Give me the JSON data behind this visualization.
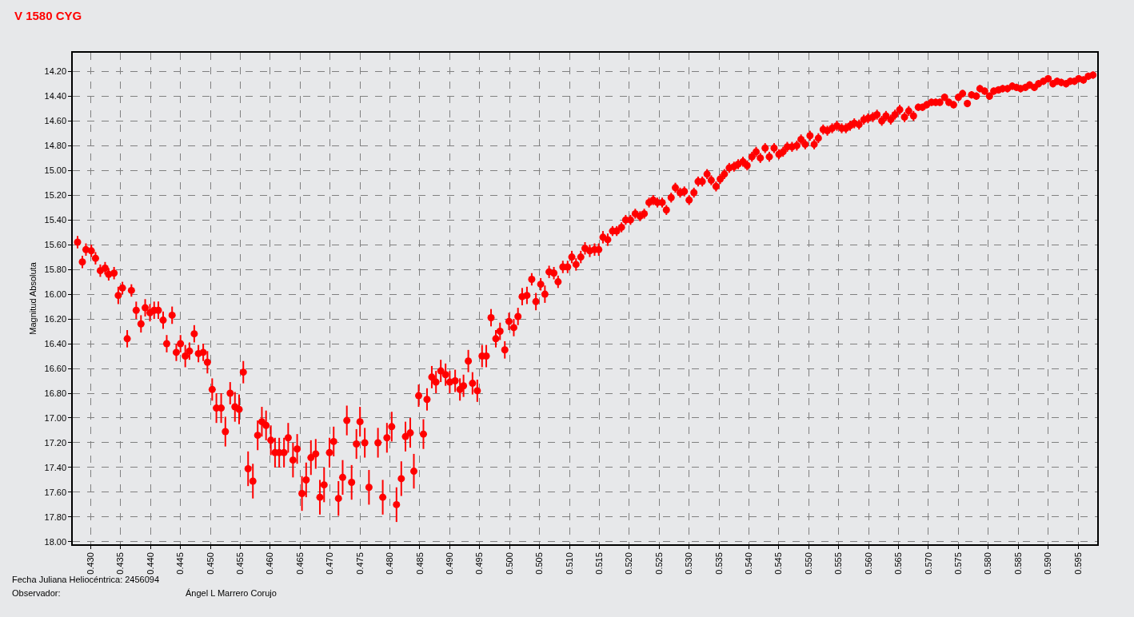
{
  "chart_data": {
    "type": "scatter",
    "title": "V 1580 CYG",
    "ylabel": "Magnitud Absoluta",
    "annotations": [
      "Fecha Juliana Heliocéntrica: 2456094",
      "Observador:",
      "Ángel L Marrero Corujo"
    ],
    "x": [
      0.4278,
      0.4286,
      0.4292,
      0.4301,
      0.4308,
      0.4316,
      0.4324,
      0.433,
      0.4339,
      0.4346,
      0.4353,
      0.4361,
      0.4368,
      0.4376,
      0.4384,
      0.4391,
      0.4399,
      0.4406,
      0.4413,
      0.4421,
      0.4427,
      0.4436,
      0.4443,
      0.445,
      0.4458,
      0.4465,
      0.4473,
      0.448,
      0.4488,
      0.4495,
      0.4503,
      0.451,
      0.4518,
      0.4525,
      0.4533,
      0.4541,
      0.4548,
      0.4555,
      0.4563,
      0.4571,
      0.4579,
      0.4586,
      0.4593,
      0.4601,
      0.4608,
      0.4615,
      0.4623,
      0.463,
      0.4638,
      0.4645,
      0.4653,
      0.466,
      0.4668,
      0.4676,
      0.4683,
      0.469,
      0.4699,
      0.4706,
      0.4714,
      0.4721,
      0.4728,
      0.4736,
      0.4744,
      0.475,
      0.4758,
      0.4765,
      0.478,
      0.4788,
      0.4795,
      0.4803,
      0.4811,
      0.4819,
      0.4826,
      0.4834,
      0.484,
      0.4848,
      0.4856,
      0.4862,
      0.487,
      0.4877,
      0.4885,
      0.4893,
      0.49,
      0.4909,
      0.4917,
      0.4923,
      0.4931,
      0.4938,
      0.4946,
      0.4954,
      0.4961,
      0.4969,
      0.4977,
      0.4984,
      0.4992,
      0.4999,
      0.5007,
      0.5014,
      0.5021,
      0.5029,
      0.5037,
      0.5044,
      0.5052,
      0.5059,
      0.5066,
      0.5074,
      0.5081,
      0.5089,
      0.5097,
      0.5104,
      0.5111,
      0.5119,
      0.5126,
      0.5134,
      0.5142,
      0.5149,
      0.5156,
      0.5164,
      0.5172,
      0.5179,
      0.5187,
      0.5194,
      0.5202,
      0.521,
      0.5218,
      0.5225,
      0.5233,
      0.524,
      0.5247,
      0.5255,
      0.5262,
      0.527,
      0.5277,
      0.5285,
      0.5292,
      0.53,
      0.5308,
      0.5315,
      0.5322,
      0.533,
      0.5337,
      0.5345,
      0.5352,
      0.5359,
      0.5367,
      0.5375,
      0.5382,
      0.539,
      0.5397,
      0.5405,
      0.5412,
      0.5419,
      0.5427,
      0.5434,
      0.5442,
      0.545,
      0.5457,
      0.5464,
      0.5472,
      0.548,
      0.5487,
      0.5494,
      0.5502,
      0.5509,
      0.5516,
      0.5524,
      0.5531,
      0.5539,
      0.5547,
      0.5555,
      0.5562,
      0.5569,
      0.5576,
      0.5584,
      0.5592,
      0.5599,
      0.5607,
      0.5614,
      0.5622,
      0.5629,
      0.5637,
      0.5644,
      0.5652,
      0.566,
      0.5667,
      0.5675,
      0.5683,
      0.569,
      0.5697,
      0.5705,
      0.5712,
      0.5719,
      0.5727,
      0.5734,
      0.5742,
      0.575,
      0.5757,
      0.5765,
      0.5772,
      0.578,
      0.5786,
      0.5794,
      0.5802,
      0.5809,
      0.5817,
      0.5824,
      0.5832,
      0.584,
      0.5847,
      0.5854,
      0.5862,
      0.5869,
      0.5877,
      0.5884,
      0.5892,
      0.59,
      0.5908,
      0.5915,
      0.5922,
      0.593,
      0.5937,
      0.5944,
      0.5951,
      0.5959,
      0.5967,
      0.5975
    ],
    "series": [
      {
        "color": "#ff0000",
        "values": [
          15.58,
          15.74,
          15.64,
          15.65,
          15.71,
          15.81,
          15.79,
          15.84,
          15.83,
          16.01,
          15.95,
          16.36,
          15.97,
          16.13,
          16.24,
          16.11,
          16.15,
          16.13,
          16.13,
          16.21,
          16.4,
          16.17,
          16.47,
          16.4,
          16.5,
          16.46,
          16.32,
          16.48,
          16.47,
          16.55,
          16.77,
          16.92,
          16.92,
          17.11,
          16.8,
          16.91,
          16.93,
          16.63,
          17.41,
          17.51,
          17.14,
          17.03,
          17.06,
          17.18,
          17.28,
          17.28,
          17.28,
          17.16,
          17.34,
          17.25,
          17.61,
          17.5,
          17.32,
          17.29,
          17.64,
          17.54,
          17.28,
          17.19,
          17.65,
          17.48,
          17.02,
          17.52,
          17.21,
          17.03,
          17.2,
          17.56,
          17.2,
          17.64,
          17.16,
          17.07,
          17.7,
          17.49,
          17.15,
          17.12,
          17.43,
          16.82,
          17.13,
          16.85,
          16.67,
          16.71,
          16.62,
          16.65,
          16.71,
          16.7,
          16.77,
          16.74,
          16.54,
          16.72,
          16.78,
          16.5,
          16.5,
          16.19,
          16.36,
          16.3,
          16.45,
          16.22,
          16.27,
          16.18,
          16.02,
          16.01,
          15.88,
          16.06,
          15.92,
          16.0,
          15.82,
          15.83,
          15.9,
          15.78,
          15.78,
          15.7,
          15.76,
          15.7,
          15.63,
          15.65,
          15.64,
          15.64,
          15.54,
          15.56,
          15.49,
          15.49,
          15.46,
          15.4,
          15.4,
          15.35,
          15.37,
          15.35,
          15.26,
          15.24,
          15.26,
          15.26,
          15.32,
          15.22,
          15.14,
          15.18,
          15.17,
          15.24,
          15.18,
          15.09,
          15.09,
          15.03,
          15.08,
          15.13,
          15.07,
          15.03,
          14.98,
          14.97,
          14.95,
          14.93,
          14.96,
          14.89,
          14.85,
          14.9,
          14.82,
          14.89,
          14.82,
          14.87,
          14.85,
          14.81,
          14.81,
          14.8,
          14.75,
          14.79,
          14.72,
          14.79,
          14.74,
          14.67,
          14.68,
          14.66,
          14.64,
          14.66,
          14.66,
          14.64,
          14.62,
          14.63,
          14.59,
          14.58,
          14.57,
          14.55,
          14.6,
          14.56,
          14.59,
          14.55,
          14.51,
          14.57,
          14.52,
          14.56,
          14.49,
          14.49,
          14.47,
          14.45,
          14.45,
          14.45,
          14.41,
          14.45,
          14.47,
          14.41,
          14.38,
          14.46,
          14.39,
          14.4,
          14.34,
          14.36,
          14.4,
          14.36,
          14.35,
          14.34,
          14.34,
          14.32,
          14.33,
          14.34,
          14.33,
          14.31,
          14.33,
          14.3,
          14.28,
          14.26,
          14.3,
          14.28,
          14.29,
          14.3,
          14.28,
          14.28,
          14.26,
          14.27,
          14.24,
          14.23
        ],
        "errors": [
          0.05,
          0.05,
          0.05,
          0.05,
          0.05,
          0.05,
          0.05,
          0.05,
          0.05,
          0.07,
          0.05,
          0.07,
          0.05,
          0.07,
          0.07,
          0.07,
          0.07,
          0.07,
          0.07,
          0.07,
          0.07,
          0.07,
          0.07,
          0.07,
          0.09,
          0.07,
          0.07,
          0.07,
          0.07,
          0.09,
          0.09,
          0.12,
          0.12,
          0.12,
          0.09,
          0.12,
          0.12,
          0.09,
          0.14,
          0.14,
          0.12,
          0.12,
          0.12,
          0.12,
          0.12,
          0.12,
          0.12,
          0.12,
          0.14,
          0.12,
          0.14,
          0.14,
          0.14,
          0.12,
          0.14,
          0.14,
          0.12,
          0.12,
          0.14,
          0.14,
          0.12,
          0.14,
          0.12,
          0.12,
          0.12,
          0.14,
          0.12,
          0.14,
          0.12,
          0.12,
          0.14,
          0.14,
          0.12,
          0.12,
          0.14,
          0.09,
          0.12,
          0.09,
          0.09,
          0.09,
          0.09,
          0.09,
          0.09,
          0.09,
          0.09,
          0.09,
          0.09,
          0.09,
          0.09,
          0.09,
          0.09,
          0.07,
          0.07,
          0.07,
          0.07,
          0.07,
          0.07,
          0.07,
          0.07,
          0.07,
          0.05,
          0.07,
          0.05,
          0.07,
          0.05,
          0.05,
          0.05,
          0.05,
          0.05,
          0.05,
          0.05,
          0.05,
          0.05,
          0.05,
          0.05,
          0.05,
          0.05,
          0.05,
          0.04,
          0.04,
          0.04,
          0.04,
          0.04,
          0.04,
          0.04,
          0.04,
          0.04,
          0.04,
          0.04,
          0.04,
          0.04,
          0.04,
          0.04,
          0.04,
          0.04,
          0.04,
          0.04,
          0.04,
          0.04,
          0.04,
          0.04,
          0.04,
          0.04,
          0.04,
          0.04,
          0.04,
          0.04,
          0.04,
          0.04,
          0.04,
          0.04,
          0.04,
          0.04,
          0.04,
          0.04,
          0.04,
          0.04,
          0.04,
          0.04,
          0.04,
          0.04,
          0.04,
          0.04,
          0.04,
          0.04,
          0.04,
          0.04,
          0.04,
          0.04,
          0.04,
          0.04,
          0.04,
          0.04,
          0.04,
          0.04,
          0.04,
          0.04,
          0.04,
          0.04,
          0.04,
          0.04,
          0.04,
          0.04,
          0.04,
          0.04,
          0.04,
          0.03,
          0.03,
          0.03,
          0.03,
          0.03,
          0.03,
          0.03,
          0.03,
          0.03,
          0.03,
          0.03,
          0.03,
          0.03,
          0.03,
          0.03,
          0.03,
          0.03,
          0.03,
          0.03,
          0.03,
          0.03,
          0.03,
          0.03,
          0.03,
          0.03,
          0.03,
          0.03,
          0.03,
          0.03,
          0.03,
          0.03,
          0.03,
          0.03,
          0.03,
          0.03,
          0.03,
          0.03,
          0.03,
          0.03,
          0.03
        ]
      }
    ],
    "xlim": [
      0.427,
      0.5982
    ],
    "ylim": [
      18.02,
      14.05
    ],
    "xticks": [
      {
        "value": 0.43,
        "label": "0.430"
      },
      {
        "value": 0.435,
        "label": "0.435"
      },
      {
        "value": 0.44,
        "label": "0.440"
      },
      {
        "value": 0.445,
        "label": "0.445"
      },
      {
        "value": 0.45,
        "label": "0.450"
      },
      {
        "value": 0.455,
        "label": "0.455"
      },
      {
        "value": 0.46,
        "label": "0.460"
      },
      {
        "value": 0.465,
        "label": "0.465"
      },
      {
        "value": 0.47,
        "label": "0.470"
      },
      {
        "value": 0.475,
        "label": "0.475"
      },
      {
        "value": 0.48,
        "label": "0.480"
      },
      {
        "value": 0.485,
        "label": "0.485"
      },
      {
        "value": 0.49,
        "label": "0.490"
      },
      {
        "value": 0.495,
        "label": "0.495"
      },
      {
        "value": 0.5,
        "label": "0.500"
      },
      {
        "value": 0.505,
        "label": "0.505"
      },
      {
        "value": 0.51,
        "label": "0.510"
      },
      {
        "value": 0.515,
        "label": "0.515"
      },
      {
        "value": 0.52,
        "label": "0.520"
      },
      {
        "value": 0.525,
        "label": "0.525"
      },
      {
        "value": 0.53,
        "label": "0.530"
      },
      {
        "value": 0.535,
        "label": "0.535"
      },
      {
        "value": 0.54,
        "label": "0.540"
      },
      {
        "value": 0.545,
        "label": "0.545"
      },
      {
        "value": 0.55,
        "label": "0.550"
      },
      {
        "value": 0.555,
        "label": "0.555"
      },
      {
        "value": 0.56,
        "label": "0.560"
      },
      {
        "value": 0.565,
        "label": "0.565"
      },
      {
        "value": 0.57,
        "label": "0.570"
      },
      {
        "value": 0.575,
        "label": "0.575"
      },
      {
        "value": 0.58,
        "label": "0.580"
      },
      {
        "value": 0.585,
        "label": "0.585"
      },
      {
        "value": 0.59,
        "label": "0.590"
      },
      {
        "value": 0.595,
        "label": "0.595"
      }
    ],
    "yticks": [
      {
        "value": 14.2,
        "label": "14.20"
      },
      {
        "value": 14.4,
        "label": "14.40"
      },
      {
        "value": 14.6,
        "label": "14.60"
      },
      {
        "value": 14.8,
        "label": "14.80"
      },
      {
        "value": 15.0,
        "label": "15.00"
      },
      {
        "value": 15.2,
        "label": "15.20"
      },
      {
        "value": 15.4,
        "label": "15.40"
      },
      {
        "value": 15.6,
        "label": "15.60"
      },
      {
        "value": 15.8,
        "label": "15.80"
      },
      {
        "value": 16.0,
        "label": "16.00"
      },
      {
        "value": 16.2,
        "label": "16.20"
      },
      {
        "value": 16.4,
        "label": "16.40"
      },
      {
        "value": 16.6,
        "label": "16.60"
      },
      {
        "value": 16.8,
        "label": "16.80"
      },
      {
        "value": 17.0,
        "label": "17.00"
      },
      {
        "value": 17.2,
        "label": "17.20"
      },
      {
        "value": 17.4,
        "label": "17.40"
      },
      {
        "value": 17.6,
        "label": "17.60"
      },
      {
        "value": 17.8,
        "label": "17.80"
      },
      {
        "value": 18.0,
        "label": "18.00"
      }
    ],
    "grid": true,
    "marker": "circle"
  }
}
